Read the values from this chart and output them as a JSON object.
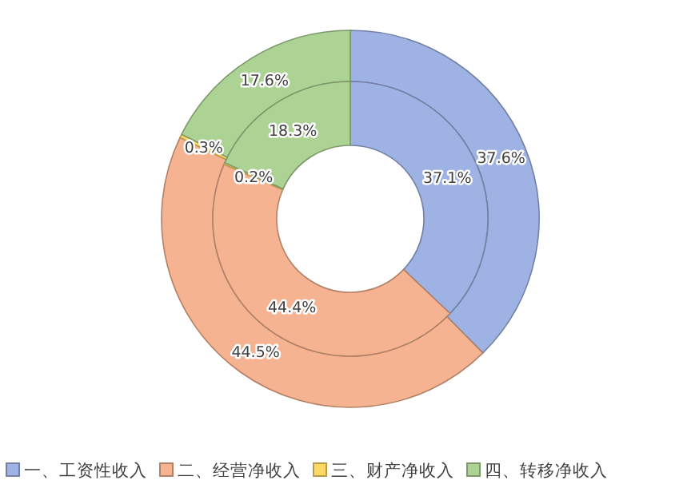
{
  "chart_data": {
    "type": "donut",
    "categories": [
      "一、工资性收入",
      "二、经营净收入",
      "三、财产净收入",
      "四、转移净收入"
    ],
    "colors": [
      "#9eb2e4",
      "#f6b391",
      "#ffd966",
      "#acd394"
    ],
    "series": [
      {
        "values": [
          37.6,
          44.5,
          0.3,
          17.6
        ],
        "value_labels": [
          "37.6%",
          "44.5%",
          "0.3%",
          "17.6%"
        ]
      },
      {
        "values": [
          37.1,
          44.4,
          0.2,
          18.3
        ],
        "value_labels": [
          "37.1%",
          "44.4%",
          "0.2%",
          "18.3%"
        ]
      }
    ],
    "legend": "bottom"
  }
}
